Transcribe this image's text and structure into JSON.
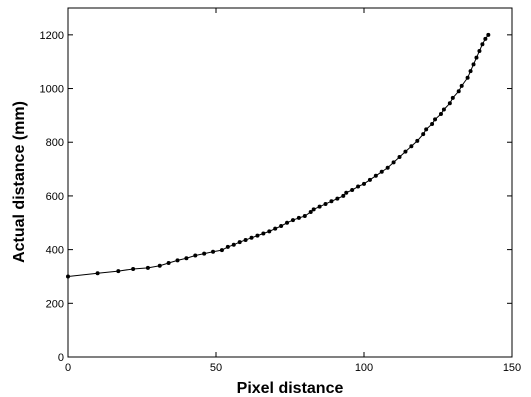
{
  "chart_data": {
    "type": "line",
    "title": "",
    "xlabel": "Pixel distance",
    "ylabel": "Actual distance (mm)",
    "xlim": [
      0,
      150
    ],
    "ylim": [
      0,
      1300
    ],
    "xticks": [
      0,
      50,
      100,
      150
    ],
    "yticks": [
      0,
      200,
      400,
      600,
      800,
      1000,
      1200
    ],
    "grid": false,
    "legend": "none",
    "colors": {
      "line": "#000000",
      "marker": "#000000",
      "axis": "#000000"
    },
    "series": [
      {
        "x": [
          0,
          10,
          17,
          22,
          27,
          31,
          34,
          37,
          40,
          43,
          46,
          49,
          52,
          54,
          56,
          58,
          60,
          62,
          64,
          66,
          68,
          70,
          72,
          74,
          76,
          78,
          80,
          82,
          83,
          85,
          87,
          89,
          91,
          93,
          94,
          96,
          98,
          100,
          102,
          104,
          106,
          108,
          110,
          112,
          114,
          116,
          118,
          120,
          121,
          123,
          124,
          126,
          127,
          129,
          130,
          132,
          133,
          135,
          136,
          137,
          138,
          139,
          140,
          141,
          142
        ],
        "y": [
          300,
          312,
          320,
          328,
          332,
          340,
          350,
          360,
          368,
          378,
          385,
          392,
          398,
          410,
          418,
          428,
          436,
          444,
          452,
          460,
          468,
          478,
          488,
          500,
          510,
          518,
          525,
          540,
          550,
          560,
          570,
          580,
          590,
          600,
          612,
          622,
          635,
          645,
          660,
          675,
          690,
          705,
          725,
          745,
          765,
          785,
          805,
          830,
          848,
          868,
          885,
          905,
          922,
          945,
          965,
          990,
          1010,
          1040,
          1065,
          1090,
          1115,
          1140,
          1165,
          1185,
          1200
        ]
      }
    ]
  }
}
